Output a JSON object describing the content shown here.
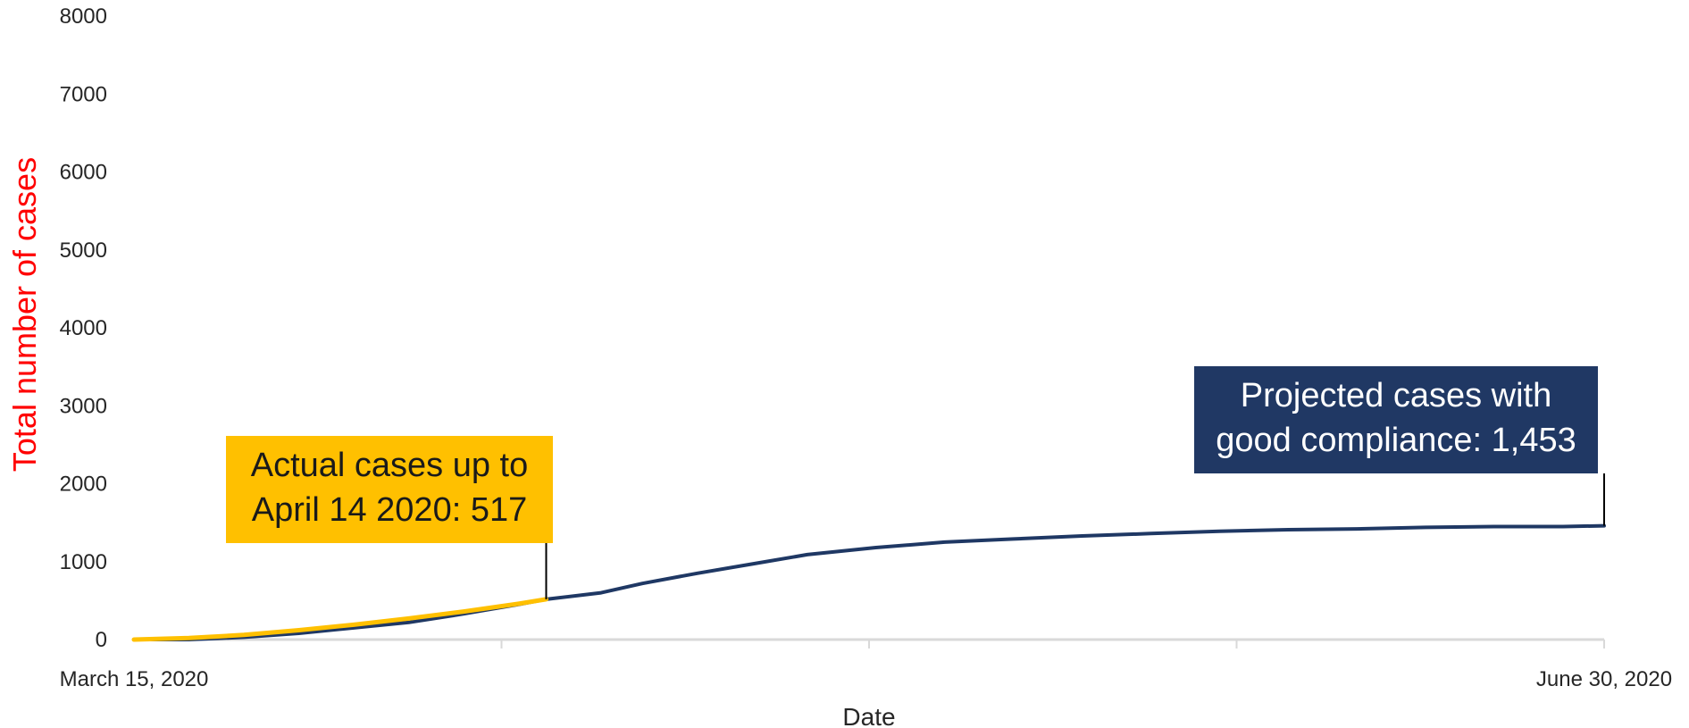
{
  "chart_data": {
    "type": "line",
    "xlabel": "Date",
    "ylabel": "Total number of cases",
    "ylim": [
      0,
      8000
    ],
    "y_ticks": [
      "0",
      "1000",
      "2000",
      "3000",
      "4000",
      "5000",
      "6000",
      "7000",
      "8000"
    ],
    "x_range": [
      "2020-03-15",
      "2020-06-30"
    ],
    "x_tick_labels": [
      {
        "date": "2020-03-15",
        "label": "March 15, 2020"
      },
      {
        "date": "2020-06-30",
        "label": "June 30, 2020"
      }
    ],
    "grid": false,
    "series": [
      {
        "color": "#1f3864",
        "x": [
          "2020-03-15",
          "2020-03-19",
          "2020-03-23",
          "2020-03-27",
          "2020-03-31",
          "2020-04-04",
          "2020-04-08",
          "2020-04-12",
          "2020-04-14",
          "2020-04-18",
          "2020-04-21",
          "2020-04-25",
          "2020-04-29",
          "2020-05-03",
          "2020-05-08",
          "2020-05-13",
          "2020-05-18",
          "2020-05-23",
          "2020-05-28",
          "2020-06-02",
          "2020-06-07",
          "2020-06-12",
          "2020-06-17",
          "2020-06-22",
          "2020-06-27",
          "2020-06-30"
        ],
        "y": [
          0,
          0,
          30,
          80,
          150,
          220,
          330,
          450,
          517,
          600,
          720,
          850,
          970,
          1090,
          1180,
          1250,
          1290,
          1330,
          1360,
          1390,
          1410,
          1420,
          1440,
          1450,
          1450,
          1460
        ]
      },
      {
        "color": "#ffc000",
        "x": [
          "2020-03-15",
          "2020-03-19",
          "2020-03-23",
          "2020-03-27",
          "2020-03-31",
          "2020-04-04",
          "2020-04-08",
          "2020-04-12",
          "2020-04-14"
        ],
        "y": [
          0,
          20,
          60,
          120,
          190,
          270,
          360,
          460,
          517
        ]
      }
    ],
    "annotations": [
      {
        "text_lines": [
          "Actual cases up to",
          "April 14 2020: 517"
        ],
        "date": "2020-04-14",
        "value": 517,
        "background": "#ffc000",
        "text_color": "#1a1a1a"
      },
      {
        "text_lines": [
          "Projected cases with",
          "good compliance: 1,453"
        ],
        "date": "2020-06-30",
        "value": 1460,
        "background": "#203864",
        "text_color": "#ffffff"
      }
    ],
    "axis_title_color": "#ff0000"
  }
}
